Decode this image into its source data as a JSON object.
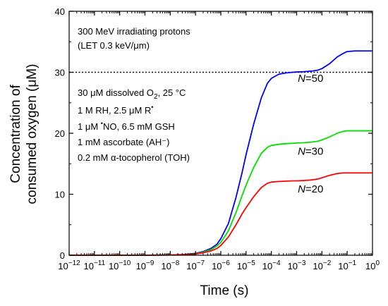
{
  "chart_data": {
    "type": "line",
    "xlabel": "Time (s)",
    "ylabel_line1": "Concentration of",
    "ylabel_line2": "consumed oxygen (μM)",
    "x_scale": "log",
    "xlim": [
      1e-12,
      1
    ],
    "ylim": [
      0,
      40
    ],
    "x_ticks": [
      {
        "exp": "-12",
        "value": 1e-12
      },
      {
        "exp": "-11",
        "value": 1e-11
      },
      {
        "exp": "-10",
        "value": 1e-10
      },
      {
        "exp": "-9",
        "value": 1e-09
      },
      {
        "exp": "-8",
        "value": 1e-08
      },
      {
        "exp": "-7",
        "value": 1e-07
      },
      {
        "exp": "-6",
        "value": 1e-06
      },
      {
        "exp": "-5",
        "value": 1e-05
      },
      {
        "exp": "-4",
        "value": 0.0001
      },
      {
        "exp": "-3",
        "value": 0.001
      },
      {
        "exp": "-2",
        "value": 0.01
      },
      {
        "exp": "-1",
        "value": 0.1
      },
      {
        "exp": "0",
        "value": 1
      }
    ],
    "y_ticks": [
      0,
      10,
      20,
      30,
      40
    ],
    "reference_line": {
      "y": 30,
      "style": "dotted"
    },
    "annotations": {
      "line1": "300 MeV irradiating protons",
      "line2": "(LET 0.3 keV/μm)",
      "line3": "30 μM dissolved O",
      "line3_sub": "2",
      "line3_end": ", 25 °C",
      "line4": "1 M RH, 2.5 μM R",
      "line4_sup": "•",
      "line5_a": "1 μM ",
      "line5_sup": "•",
      "line5_b": "NO, 6.5 mM GSH",
      "line6": "1 mM ascorbate (AH⁻)",
      "line7": "0.2 mM α-tocopherol (TOH)"
    },
    "series": [
      {
        "label_italic": "N",
        "label_rest": "=50",
        "color": "#0000ff",
        "x": [
          1e-12,
          1e-09,
          1e-08,
          3e-08,
          1e-07,
          2e-07,
          4e-07,
          7e-07,
          1e-06,
          2e-06,
          4e-06,
          7e-06,
          1e-05,
          2e-05,
          4e-05,
          7e-05,
          0.0001,
          0.0002,
          0.0004,
          0.0007,
          0.001,
          0.002,
          0.004,
          0.007,
          0.01,
          0.02,
          0.04,
          0.07,
          0.1,
          0.2,
          0.4,
          1
        ],
        "y": [
          0,
          0,
          0.05,
          0.1,
          0.3,
          0.6,
          1.1,
          1.8,
          2.7,
          5.2,
          9.5,
          13.6,
          16.5,
          21.5,
          25.8,
          28.2,
          29.0,
          29.7,
          29.9,
          30.0,
          30.05,
          30.1,
          30.2,
          30.35,
          30.6,
          31.4,
          32.5,
          33.1,
          33.4,
          33.5,
          33.5,
          33.5
        ]
      },
      {
        "label_italic": "N",
        "label_rest": "=30",
        "color": "#00e000",
        "x": [
          1e-12,
          1e-09,
          1e-08,
          3e-08,
          1e-07,
          2e-07,
          4e-07,
          7e-07,
          1e-06,
          2e-06,
          4e-06,
          7e-06,
          1e-05,
          2e-05,
          4e-05,
          7e-05,
          0.0001,
          0.0002,
          0.0004,
          0.0007,
          0.001,
          0.002,
          0.004,
          0.007,
          0.01,
          0.02,
          0.04,
          0.07,
          0.1,
          0.2,
          0.4,
          1
        ],
        "y": [
          0,
          0,
          0.05,
          0.1,
          0.25,
          0.5,
          0.9,
          1.5,
          2.1,
          4.0,
          7.0,
          9.8,
          11.5,
          14.4,
          16.7,
          17.7,
          18.0,
          18.2,
          18.3,
          18.35,
          18.4,
          18.45,
          18.55,
          18.7,
          18.9,
          19.4,
          20.0,
          20.3,
          20.4,
          20.4,
          20.4,
          20.4
        ]
      },
      {
        "label_italic": "N",
        "label_rest": "=20",
        "color": "#ff0000",
        "x": [
          1e-12,
          1e-09,
          1e-08,
          3e-08,
          1e-07,
          2e-07,
          4e-07,
          7e-07,
          1e-06,
          2e-06,
          4e-06,
          7e-06,
          1e-05,
          2e-05,
          4e-05,
          7e-05,
          0.0001,
          0.0002,
          0.0004,
          0.0007,
          0.001,
          0.002,
          0.004,
          0.007,
          0.01,
          0.02,
          0.04,
          0.07,
          0.1,
          0.2,
          0.4,
          1
        ],
        "y": [
          0,
          0,
          0.05,
          0.1,
          0.2,
          0.4,
          0.7,
          1.1,
          1.6,
          3.0,
          5.0,
          6.8,
          7.8,
          9.6,
          11.1,
          11.8,
          12.0,
          12.1,
          12.15,
          12.2,
          12.2,
          12.25,
          12.35,
          12.5,
          12.7,
          13.1,
          13.4,
          13.5,
          13.5,
          13.5,
          13.5,
          13.5
        ]
      }
    ]
  }
}
